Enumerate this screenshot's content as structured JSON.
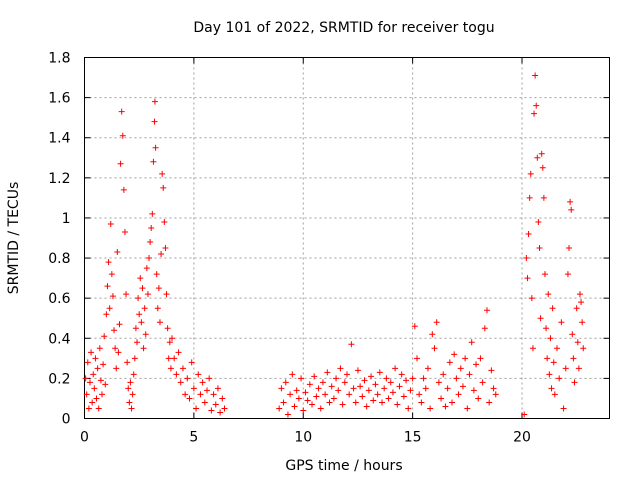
{
  "chart_data": {
    "type": "scatter",
    "title": "Day 101 of 2022, SRMTID for receiver togu",
    "xlabel": "GPS time / hours",
    "ylabel": "SRMTID / TECUs",
    "xlim": [
      0,
      24
    ],
    "ylim": [
      0,
      1.8
    ],
    "xticks": [
      0,
      5,
      10,
      15,
      20
    ],
    "xtick_labels": [
      "0",
      "5",
      "10",
      "15",
      "20"
    ],
    "yticks": [
      0,
      0.2,
      0.4,
      0.6,
      0.8,
      1,
      1.2,
      1.4,
      1.6,
      1.8
    ],
    "ytick_labels": [
      "0",
      "0.2",
      "0.4",
      "0.6",
      "0.8",
      "1",
      "1.2",
      "1.4",
      "1.6",
      "1.8"
    ],
    "grid": true,
    "marker": "+",
    "series": [
      {
        "name": "SRMTID",
        "color": "#ff0000",
        "points": [
          [
            0.05,
            0.2
          ],
          [
            0.1,
            0.12
          ],
          [
            0.15,
            0.28
          ],
          [
            0.2,
            0.05
          ],
          [
            0.25,
            0.18
          ],
          [
            0.3,
            0.33
          ],
          [
            0.35,
            0.08
          ],
          [
            0.4,
            0.22
          ],
          [
            0.45,
            0.15
          ],
          [
            0.5,
            0.3
          ],
          [
            0.55,
            0.1
          ],
          [
            0.6,
            0.25
          ],
          [
            0.65,
            0.05
          ],
          [
            0.7,
            0.35
          ],
          [
            0.75,
            0.19
          ],
          [
            0.8,
            0.12
          ],
          [
            0.85,
            0.27
          ],
          [
            0.9,
            0.41
          ],
          [
            0.95,
            0.17
          ],
          [
            1.0,
            0.52
          ],
          [
            1.05,
            0.66
          ],
          [
            1.1,
            0.78
          ],
          [
            1.15,
            0.55
          ],
          [
            1.2,
            0.97
          ],
          [
            1.25,
            0.72
          ],
          [
            1.3,
            0.61
          ],
          [
            1.35,
            0.44
          ],
          [
            1.4,
            0.35
          ],
          [
            1.45,
            0.25
          ],
          [
            1.5,
            0.83
          ],
          [
            1.55,
            0.33
          ],
          [
            1.6,
            0.47
          ],
          [
            1.65,
            1.27
          ],
          [
            1.7,
            1.53
          ],
          [
            1.75,
            1.41
          ],
          [
            1.8,
            1.14
          ],
          [
            1.85,
            0.93
          ],
          [
            1.9,
            0.62
          ],
          [
            1.95,
            0.28
          ],
          [
            2.0,
            0.15
          ],
          [
            2.05,
            0.08
          ],
          [
            2.1,
            0.18
          ],
          [
            2.15,
            0.05
          ],
          [
            2.2,
            0.12
          ],
          [
            2.25,
            0.22
          ],
          [
            2.3,
            0.3
          ],
          [
            2.35,
            0.45
          ],
          [
            2.4,
            0.38
          ],
          [
            2.45,
            0.6
          ],
          [
            2.5,
            0.52
          ],
          [
            2.55,
            0.7
          ],
          [
            2.6,
            0.48
          ],
          [
            2.65,
            0.65
          ],
          [
            2.7,
            0.35
          ],
          [
            2.75,
            0.55
          ],
          [
            2.8,
            0.42
          ],
          [
            2.85,
            0.75
          ],
          [
            2.9,
            0.62
          ],
          [
            2.95,
            0.8
          ],
          [
            3.0,
            0.88
          ],
          [
            3.05,
            0.95
          ],
          [
            3.1,
            1.02
          ],
          [
            3.15,
            1.28
          ],
          [
            3.2,
            1.48
          ],
          [
            3.22,
            1.58
          ],
          [
            3.25,
            1.35
          ],
          [
            3.3,
            0.72
          ],
          [
            3.35,
            0.55
          ],
          [
            3.4,
            0.65
          ],
          [
            3.45,
            0.48
          ],
          [
            3.5,
            0.82
          ],
          [
            3.55,
            1.22
          ],
          [
            3.6,
            1.15
          ],
          [
            3.65,
            0.98
          ],
          [
            3.7,
            0.85
          ],
          [
            3.75,
            0.62
          ],
          [
            3.8,
            0.45
          ],
          [
            3.85,
            0.3
          ],
          [
            3.9,
            0.38
          ],
          [
            3.95,
            0.25
          ],
          [
            4.0,
            0.4
          ],
          [
            4.1,
            0.3
          ],
          [
            4.2,
            0.22
          ],
          [
            4.3,
            0.33
          ],
          [
            4.4,
            0.18
          ],
          [
            4.5,
            0.25
          ],
          [
            4.6,
            0.12
          ],
          [
            4.7,
            0.2
          ],
          [
            4.8,
            0.1
          ],
          [
            4.9,
            0.28
          ],
          [
            5.0,
            0.15
          ],
          [
            5.1,
            0.05
          ],
          [
            5.2,
            0.22
          ],
          [
            5.3,
            0.12
          ],
          [
            5.4,
            0.18
          ],
          [
            5.5,
            0.08
          ],
          [
            5.6,
            0.14
          ],
          [
            5.7,
            0.2
          ],
          [
            5.8,
            0.04
          ],
          [
            5.9,
            0.12
          ],
          [
            6.0,
            0.07
          ],
          [
            6.1,
            0.15
          ],
          [
            6.2,
            0.03
          ],
          [
            6.3,
            0.1
          ],
          [
            6.4,
            0.05
          ],
          [
            8.9,
            0.05
          ],
          [
            9.0,
            0.15
          ],
          [
            9.1,
            0.08
          ],
          [
            9.2,
            0.18
          ],
          [
            9.3,
            0.02
          ],
          [
            9.4,
            0.12
          ],
          [
            9.5,
            0.22
          ],
          [
            9.6,
            0.06
          ],
          [
            9.7,
            0.14
          ],
          [
            9.8,
            0.1
          ],
          [
            9.9,
            0.2
          ],
          [
            10.0,
            0.04
          ],
          [
            10.1,
            0.13
          ],
          [
            10.2,
            0.09
          ],
          [
            10.3,
            0.17
          ],
          [
            10.4,
            0.07
          ],
          [
            10.5,
            0.21
          ],
          [
            10.6,
            0.11
          ],
          [
            10.7,
            0.15
          ],
          [
            10.8,
            0.05
          ],
          [
            10.9,
            0.18
          ],
          [
            11.0,
            0.12
          ],
          [
            11.1,
            0.23
          ],
          [
            11.2,
            0.08
          ],
          [
            11.3,
            0.16
          ],
          [
            11.4,
            0.1
          ],
          [
            11.5,
            0.2
          ],
          [
            11.6,
            0.14
          ],
          [
            11.7,
            0.25
          ],
          [
            11.8,
            0.07
          ],
          [
            11.9,
            0.18
          ],
          [
            12.0,
            0.22
          ],
          [
            12.1,
            0.12
          ],
          [
            12.2,
            0.37
          ],
          [
            12.3,
            0.15
          ],
          [
            12.4,
            0.08
          ],
          [
            12.5,
            0.24
          ],
          [
            12.6,
            0.16
          ],
          [
            12.7,
            0.11
          ],
          [
            12.8,
            0.19
          ],
          [
            12.9,
            0.06
          ],
          [
            13.0,
            0.14
          ],
          [
            13.1,
            0.21
          ],
          [
            13.2,
            0.09
          ],
          [
            13.3,
            0.17
          ],
          [
            13.4,
            0.12
          ],
          [
            13.5,
            0.23
          ],
          [
            13.6,
            0.08
          ],
          [
            13.7,
            0.15
          ],
          [
            13.8,
            0.2
          ],
          [
            13.9,
            0.1
          ],
          [
            14.0,
            0.18
          ],
          [
            14.1,
            0.13
          ],
          [
            14.2,
            0.25
          ],
          [
            14.3,
            0.07
          ],
          [
            14.4,
            0.16
          ],
          [
            14.5,
            0.22
          ],
          [
            14.6,
            0.11
          ],
          [
            14.7,
            0.19
          ],
          [
            14.8,
            0.05
          ],
          [
            14.9,
            0.14
          ],
          [
            15.0,
            0.2
          ],
          [
            15.1,
            0.46
          ],
          [
            15.2,
            0.3
          ],
          [
            15.3,
            0.12
          ],
          [
            15.4,
            0.08
          ],
          [
            15.5,
            0.2
          ],
          [
            15.6,
            0.15
          ],
          [
            15.7,
            0.25
          ],
          [
            15.8,
            0.05
          ],
          [
            15.9,
            0.42
          ],
          [
            16.0,
            0.35
          ],
          [
            16.1,
            0.48
          ],
          [
            16.2,
            0.18
          ],
          [
            16.3,
            0.1
          ],
          [
            16.4,
            0.22
          ],
          [
            16.5,
            0.06
          ],
          [
            16.6,
            0.15
          ],
          [
            16.7,
            0.28
          ],
          [
            16.8,
            0.08
          ],
          [
            16.9,
            0.32
          ],
          [
            17.0,
            0.2
          ],
          [
            17.1,
            0.12
          ],
          [
            17.2,
            0.25
          ],
          [
            17.3,
            0.16
          ],
          [
            17.4,
            0.3
          ],
          [
            17.5,
            0.05
          ],
          [
            17.6,
            0.22
          ],
          [
            17.7,
            0.38
          ],
          [
            17.8,
            0.14
          ],
          [
            17.9,
            0.27
          ],
          [
            18.0,
            0.1
          ],
          [
            18.1,
            0.3
          ],
          [
            18.2,
            0.18
          ],
          [
            18.3,
            0.45
          ],
          [
            18.4,
            0.54
          ],
          [
            18.5,
            0.08
          ],
          [
            18.6,
            0.24
          ],
          [
            18.7,
            0.15
          ],
          [
            18.8,
            0.12
          ],
          [
            20.1,
            0.02
          ],
          [
            20.2,
            0.8
          ],
          [
            20.25,
            0.7
          ],
          [
            20.3,
            0.92
          ],
          [
            20.35,
            1.1
          ],
          [
            20.4,
            1.22
          ],
          [
            20.45,
            0.6
          ],
          [
            20.5,
            0.35
          ],
          [
            20.55,
            1.52
          ],
          [
            20.6,
            1.71
          ],
          [
            20.65,
            1.56
          ],
          [
            20.7,
            1.3
          ],
          [
            20.75,
            0.98
          ],
          [
            20.8,
            0.85
          ],
          [
            20.85,
            0.5
          ],
          [
            20.9,
            1.32
          ],
          [
            20.95,
            1.25
          ],
          [
            21.0,
            1.1
          ],
          [
            21.05,
            0.72
          ],
          [
            21.1,
            0.45
          ],
          [
            21.15,
            0.3
          ],
          [
            21.2,
            0.62
          ],
          [
            21.25,
            0.22
          ],
          [
            21.3,
            0.4
          ],
          [
            21.35,
            0.15
          ],
          [
            21.4,
            0.55
          ],
          [
            21.45,
            0.28
          ],
          [
            21.5,
            0.12
          ],
          [
            21.6,
            0.35
          ],
          [
            21.7,
            0.2
          ],
          [
            21.8,
            0.48
          ],
          [
            21.9,
            0.05
          ],
          [
            22.0,
            0.25
          ],
          [
            22.1,
            0.72
          ],
          [
            22.15,
            0.85
          ],
          [
            22.2,
            1.08
          ],
          [
            22.25,
            1.04
          ],
          [
            22.3,
            0.42
          ],
          [
            22.35,
            0.3
          ],
          [
            22.4,
            0.18
          ],
          [
            22.5,
            0.55
          ],
          [
            22.55,
            0.38
          ],
          [
            22.6,
            0.25
          ],
          [
            22.65,
            0.62
          ],
          [
            22.7,
            0.58
          ],
          [
            22.75,
            0.48
          ],
          [
            22.8,
            0.35
          ]
        ]
      }
    ]
  }
}
